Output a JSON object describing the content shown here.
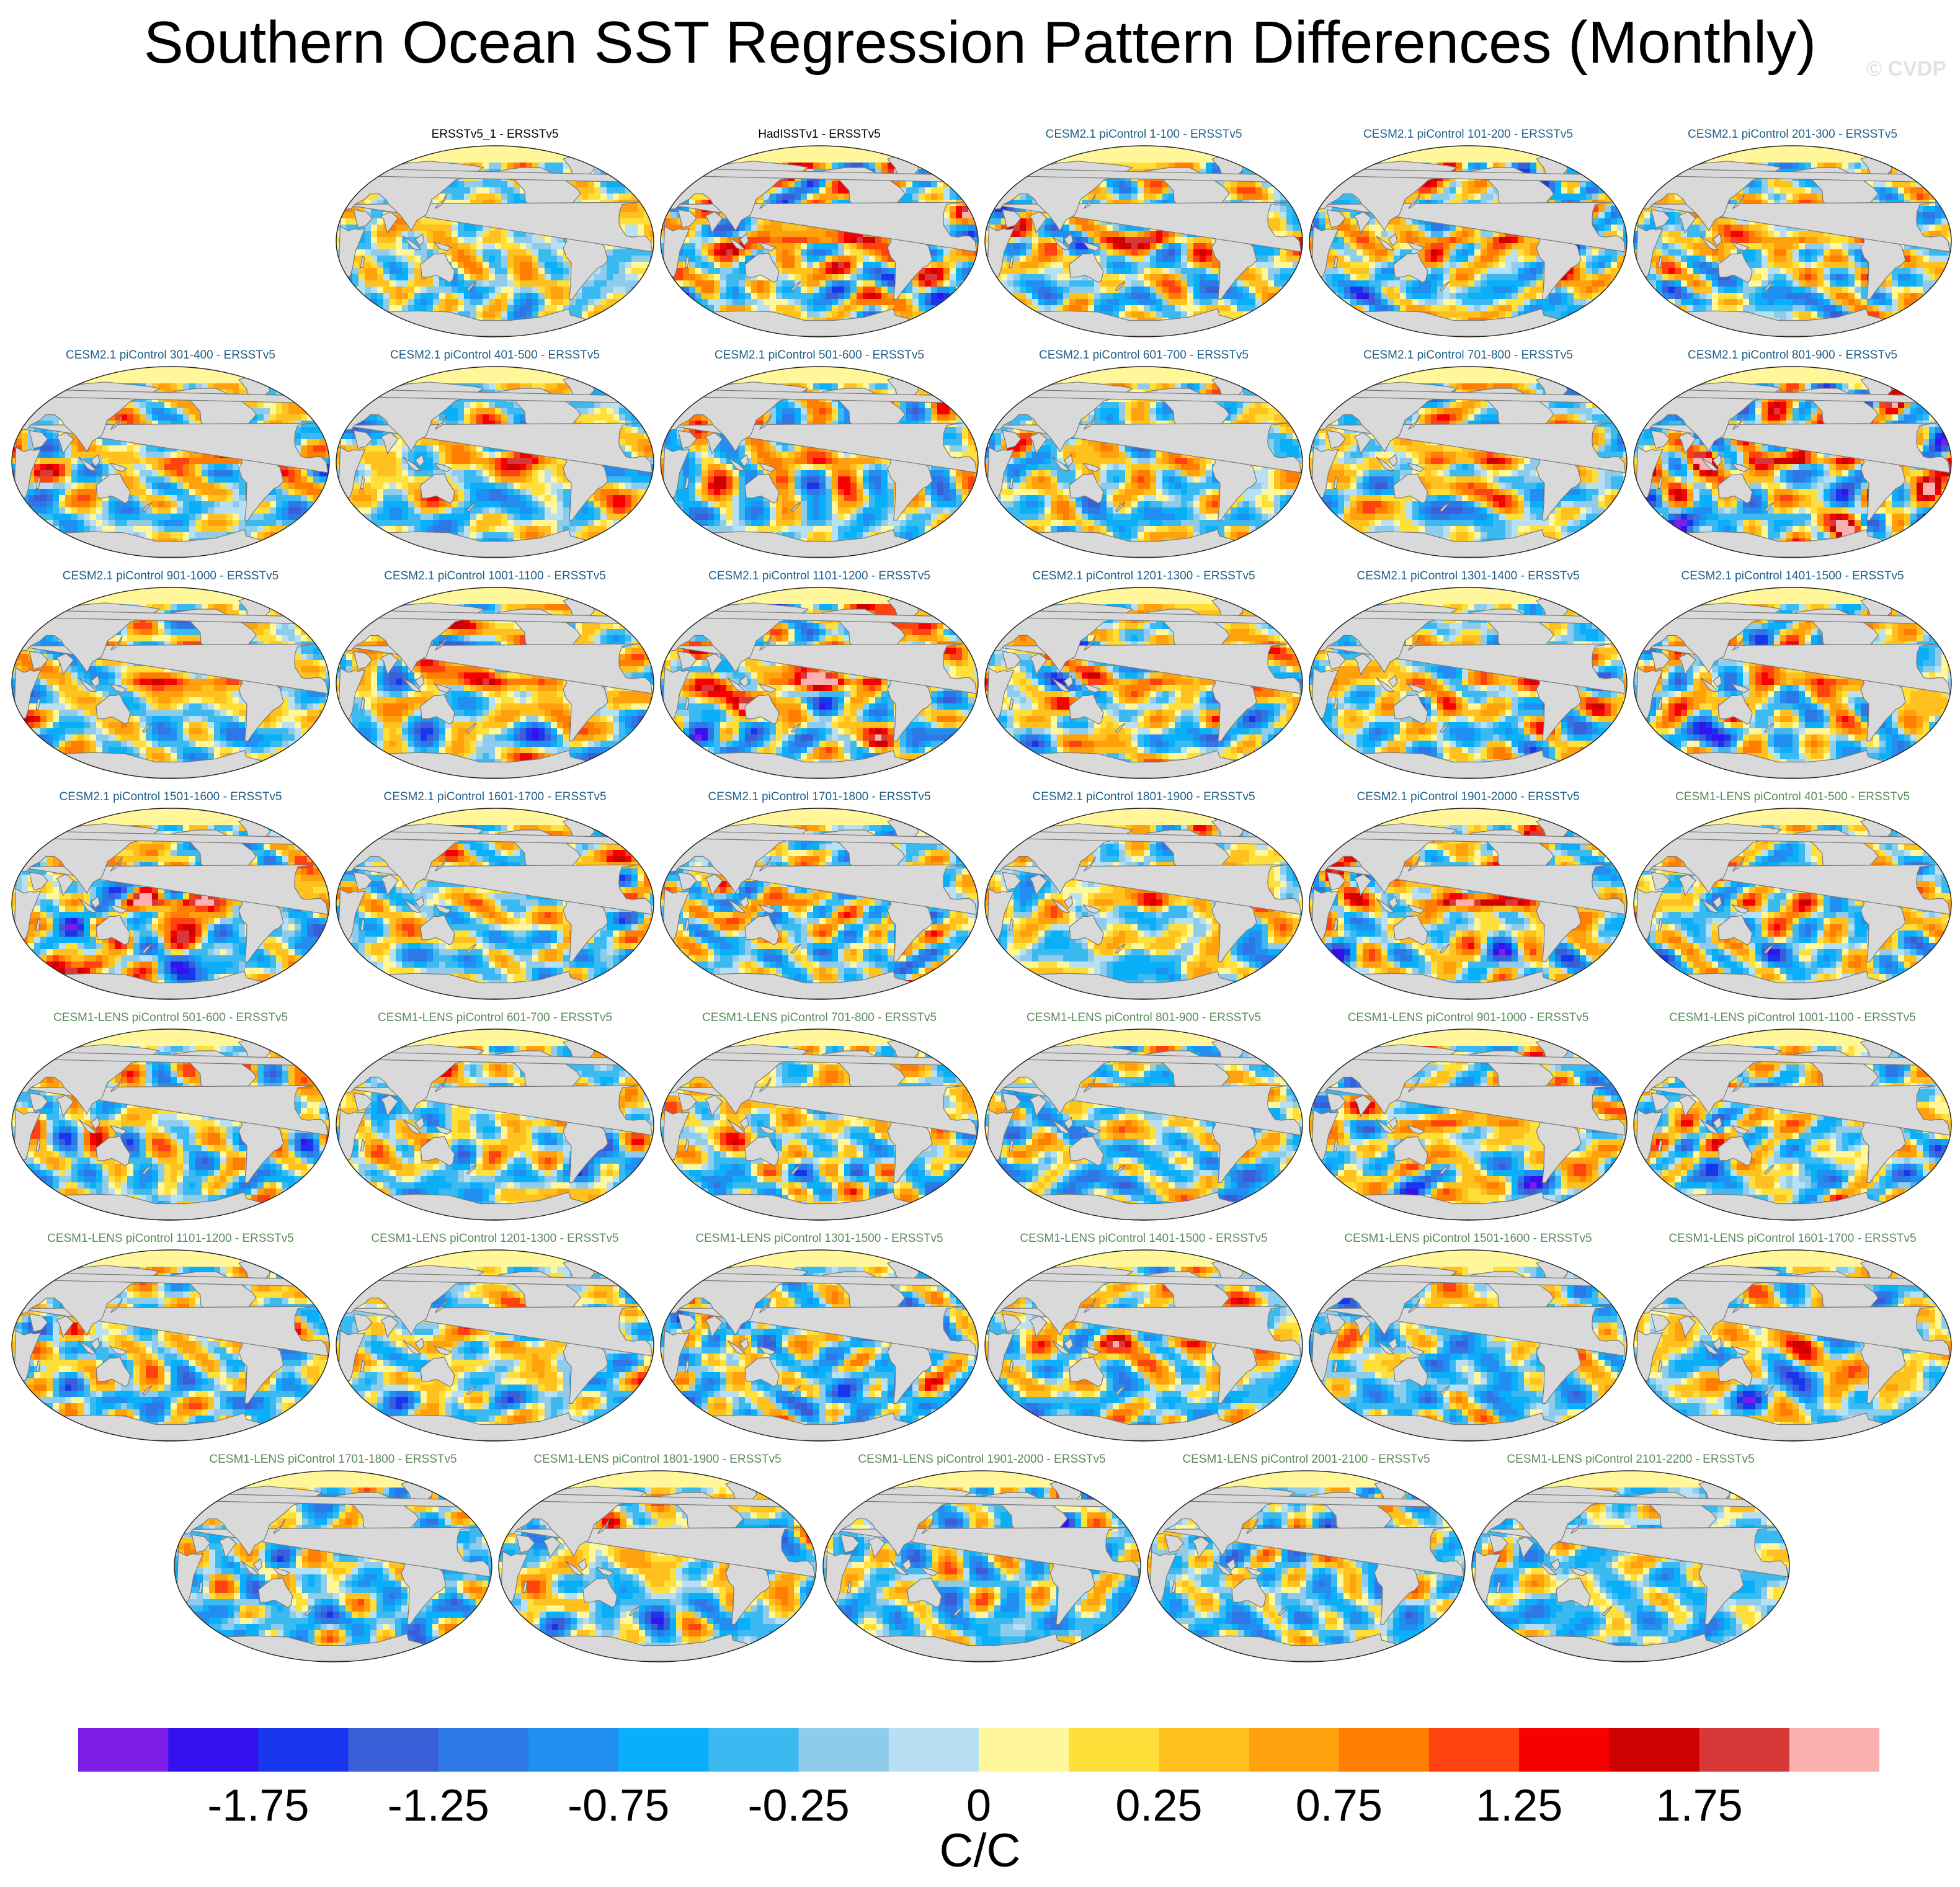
{
  "title": "Southern Ocean SST Regression Pattern Differences (Monthly)",
  "watermark": "© CVDP",
  "units": "C/C",
  "colors": {
    "obs_title": "#000000",
    "cesm2_title": "#1f5f87",
    "cesm1_title": "#5b8a5b",
    "land": "#d9d9d9",
    "coast": "#777777"
  },
  "chart_data": {
    "type": "heatmap",
    "projection": "robinson-global",
    "panels": [
      {
        "title": "ERSSTv5_1 - ERSSTv5",
        "group": "obs",
        "pattern": "weak"
      },
      {
        "title": "HadISSTv1 - ERSSTv5",
        "group": "obs",
        "pattern": "strong"
      },
      {
        "title": "CESM2.1 piControl 1-100 - ERSSTv5",
        "group": "cesm2",
        "pattern": "enso"
      },
      {
        "title": "CESM2.1 piControl 101-200 - ERSSTv5",
        "group": "cesm2",
        "pattern": "enso"
      },
      {
        "title": "CESM2.1 piControl 201-300 - ERSSTv5",
        "group": "cesm2",
        "pattern": "enso"
      },
      {
        "title": "CESM2.1 piControl 301-400 - ERSSTv5",
        "group": "cesm2",
        "pattern": "enso"
      },
      {
        "title": "CESM2.1 piControl 401-500 - ERSSTv5",
        "group": "cesm2",
        "pattern": "enso"
      },
      {
        "title": "CESM2.1 piControl 501-600 - ERSSTv5",
        "group": "cesm2",
        "pattern": "enso"
      },
      {
        "title": "CESM2.1 piControl 601-700 - ERSSTv5",
        "group": "cesm2",
        "pattern": "mixed"
      },
      {
        "title": "CESM2.1 piControl 701-800 - ERSSTv5",
        "group": "cesm2",
        "pattern": "enso"
      },
      {
        "title": "CESM2.1 piControl 801-900 - ERSSTv5",
        "group": "cesm2",
        "pattern": "enso-strong"
      },
      {
        "title": "CESM2.1 piControl 901-1000 - ERSSTv5",
        "group": "cesm2",
        "pattern": "enso"
      },
      {
        "title": "CESM2.1 piControl 1001-1100 - ERSSTv5",
        "group": "cesm2",
        "pattern": "enso"
      },
      {
        "title": "CESM2.1 piControl 1101-1200 - ERSSTv5",
        "group": "cesm2",
        "pattern": "enso-strong"
      },
      {
        "title": "CESM2.1 piControl 1201-1300 - ERSSTv5",
        "group": "cesm2",
        "pattern": "enso"
      },
      {
        "title": "CESM2.1 piControl 1301-1400 - ERSSTv5",
        "group": "cesm2",
        "pattern": "enso"
      },
      {
        "title": "CESM2.1 piControl 1401-1500 - ERSSTv5",
        "group": "cesm2",
        "pattern": "enso"
      },
      {
        "title": "CESM2.1 piControl 1501-1600 - ERSSTv5",
        "group": "cesm2",
        "pattern": "enso-strong"
      },
      {
        "title": "CESM2.1 piControl 1601-1700 - ERSSTv5",
        "group": "cesm2",
        "pattern": "mixed"
      },
      {
        "title": "CESM2.1 piControl 1701-1800 - ERSSTv5",
        "group": "cesm2",
        "pattern": "mixed"
      },
      {
        "title": "CESM2.1 piControl 1801-1900 - ERSSTv5",
        "group": "cesm2",
        "pattern": "enso"
      },
      {
        "title": "CESM2.1 piControl 1901-2000 - ERSSTv5",
        "group": "cesm2",
        "pattern": "enso-strong"
      },
      {
        "title": "CESM1-LENS piControl 401-500 - ERSSTv5",
        "group": "cesm1",
        "pattern": "mixed"
      },
      {
        "title": "CESM1-LENS piControl 501-600 - ERSSTv5",
        "group": "cesm1",
        "pattern": "mixed"
      },
      {
        "title": "CESM1-LENS piControl 601-700 - ERSSTv5",
        "group": "cesm1",
        "pattern": "mixed"
      },
      {
        "title": "CESM1-LENS piControl 701-800 - ERSSTv5",
        "group": "cesm1",
        "pattern": "mixed"
      },
      {
        "title": "CESM1-LENS piControl 801-900 - ERSSTv5",
        "group": "cesm1",
        "pattern": "cool"
      },
      {
        "title": "CESM1-LENS piControl 901-1000 - ERSSTv5",
        "group": "cesm1",
        "pattern": "enso"
      },
      {
        "title": "CESM1-LENS piControl 1001-1100 - ERSSTv5",
        "group": "cesm1",
        "pattern": "mixed"
      },
      {
        "title": "CESM1-LENS piControl 1101-1200 - ERSSTv5",
        "group": "cesm1",
        "pattern": "mixed"
      },
      {
        "title": "CESM1-LENS piControl 1201-1300 - ERSSTv5",
        "group": "cesm1",
        "pattern": "mixed"
      },
      {
        "title": "CESM1-LENS piControl 1301-1500 - ERSSTv5",
        "group": "cesm1",
        "pattern": "cool"
      },
      {
        "title": "CESM1-LENS piControl 1401-1500 - ERSSTv5",
        "group": "cesm1",
        "pattern": "enso"
      },
      {
        "title": "CESM1-LENS piControl 1501-1600 - ERSSTv5",
        "group": "cesm1",
        "pattern": "cool"
      },
      {
        "title": "CESM1-LENS piControl 1601-1700 - ERSSTv5",
        "group": "cesm1",
        "pattern": "mixed"
      },
      {
        "title": "CESM1-LENS piControl 1701-1800 - ERSSTv5",
        "group": "cesm1",
        "pattern": "cool"
      },
      {
        "title": "CESM1-LENS piControl 1801-1900 - ERSSTv5",
        "group": "cesm1",
        "pattern": "mixed"
      },
      {
        "title": "CESM1-LENS piControl 1901-2000 - ERSSTv5",
        "group": "cesm1",
        "pattern": "cool"
      },
      {
        "title": "CESM1-LENS piControl 2001-2100 - ERSSTv5",
        "group": "cesm1",
        "pattern": "cool"
      },
      {
        "title": "CESM1-LENS piControl 2101-2200 - ERSSTv5",
        "group": "cesm1",
        "pattern": "cool"
      }
    ],
    "colorbar": {
      "levels": [
        -2.0,
        -1.75,
        -1.5,
        -1.25,
        -1.0,
        -0.75,
        -0.5,
        -0.25,
        -0.1,
        0,
        0.1,
        0.25,
        0.5,
        0.75,
        1.0,
        1.25,
        1.5,
        1.75,
        2.0
      ],
      "colors": [
        "#7c1ee8",
        "#3511f0",
        "#1836ee",
        "#3a5ed8",
        "#2d78e6",
        "#218ff2",
        "#0aaffa",
        "#3bbaf2",
        "#8fccec",
        "#b8e0f4",
        "#fff79a",
        "#ffe03a",
        "#ffc11e",
        "#ffa10c",
        "#ff7d00",
        "#ff4210",
        "#f70000",
        "#cf0000",
        "#d83838",
        "#fdb0b0"
      ],
      "tick_labels": [
        {
          "value": -1.75,
          "label": "-1.75"
        },
        {
          "value": -1.25,
          "label": "-1.25"
        },
        {
          "value": -0.75,
          "label": "-0.75"
        },
        {
          "value": -0.25,
          "label": "-0.25"
        },
        {
          "value": 0,
          "label": "0"
        },
        {
          "value": 0.25,
          "label": "0.25"
        },
        {
          "value": 0.75,
          "label": "0.75"
        },
        {
          "value": 1.25,
          "label": "1.25"
        },
        {
          "value": 1.75,
          "label": "1.75"
        }
      ]
    }
  }
}
